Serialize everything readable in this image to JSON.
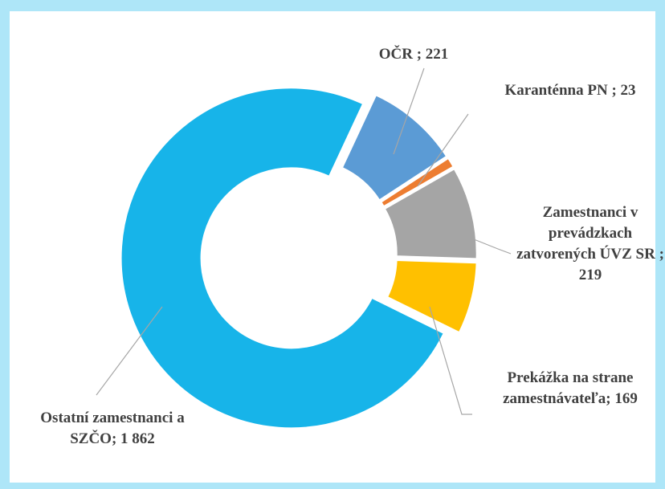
{
  "chart_data": {
    "type": "donut",
    "values": [
      221,
      23,
      219,
      169,
      1862
    ],
    "value_labels": [
      "OČR ; 221",
      "Karanténna PN ; 23",
      "Zamestnanci v prevádzkach zatvorených ÚVZ SR ; 219",
      "Prekážka na strane zamestnávateľa; 169",
      "Ostatní zamestnanci a SZČO; 1 862"
    ],
    "colors": [
      "#5b9bd5",
      "#ed7d31",
      "#a5a5a5",
      "#ffc000",
      "#17b4e9"
    ]
  }
}
